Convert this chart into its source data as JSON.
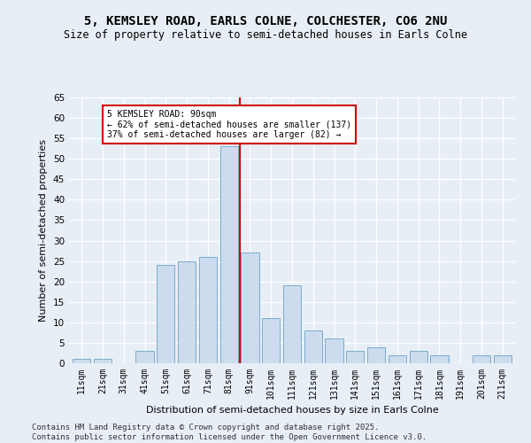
{
  "title1": "5, KEMSLEY ROAD, EARLS COLNE, COLCHESTER, CO6 2NU",
  "title2": "Size of property relative to semi-detached houses in Earls Colne",
  "xlabel": "Distribution of semi-detached houses by size in Earls Colne",
  "ylabel": "Number of semi-detached properties",
  "categories": [
    "11sqm",
    "21sqm",
    "31sqm",
    "41sqm",
    "51sqm",
    "61sqm",
    "71sqm",
    "81sqm",
    "91sqm",
    "101sqm",
    "111sqm",
    "121sqm",
    "131sqm",
    "141sqm",
    "151sqm",
    "161sqm",
    "171sqm",
    "181sqm",
    "191sqm",
    "201sqm",
    "211sqm"
  ],
  "values": [
    1,
    1,
    0,
    3,
    24,
    25,
    26,
    53,
    27,
    11,
    19,
    8,
    6,
    3,
    4,
    2,
    3,
    2,
    0,
    2,
    2
  ],
  "bar_color": "#ccdcee",
  "bar_edge_color": "#7aaccc",
  "vline_color": "#cc0000",
  "annotation_title": "5 KEMSLEY ROAD: 90sqm",
  "annotation_line1": "← 62% of semi-detached houses are smaller (137)",
  "annotation_line2": "37% of semi-detached houses are larger (82) →",
  "annotation_box_facecolor": "#ffffff",
  "annotation_box_edgecolor": "#cc0000",
  "ylim": [
    0,
    65
  ],
  "yticks": [
    0,
    5,
    10,
    15,
    20,
    25,
    30,
    35,
    40,
    45,
    50,
    55,
    60,
    65
  ],
  "footer1": "Contains HM Land Registry data © Crown copyright and database right 2025.",
  "footer2": "Contains public sector information licensed under the Open Government Licence v3.0.",
  "bg_color": "#e8eef5",
  "plot_bg_color": "#e8eef5",
  "grid_color": "#ffffff"
}
